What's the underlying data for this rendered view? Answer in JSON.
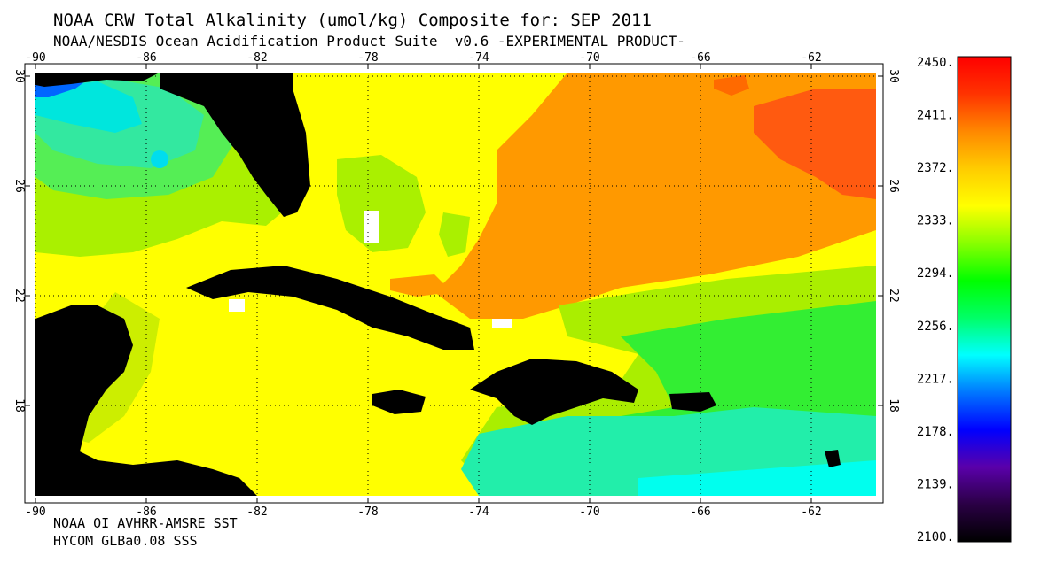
{
  "title_line1": "NOAA CRW Total Alkalinity (umol/kg) Composite for: SEP 2011",
  "title_line2": "NOAA/NESDIS Ocean Acidification Product Suite  v0.6 -EXPERIMENTAL PRODUCT-",
  "source_line1": "NOAA OI AVHRR-AMSRE SST",
  "source_line2": "HYCOM GLBa0.08 SSS",
  "map": {
    "lon_ticks": [
      "-90",
      "-86",
      "-82",
      "-78",
      "-74",
      "-70",
      "-66",
      "-62"
    ],
    "lat_ticks": [
      "30",
      "26",
      "22",
      "18"
    ]
  },
  "colorbar": {
    "labels": [
      "2450.",
      "2411.",
      "2372.",
      "2333.",
      "2294.",
      "2256.",
      "2217.",
      "2178.",
      "2139.",
      "2100."
    ],
    "colors": [
      "#000000",
      "#2a0044",
      "#5a00aa",
      "#0000ff",
      "#0077ff",
      "#00ffff",
      "#00ff66",
      "#00ff00",
      "#88ff00",
      "#ffff00",
      "#ffcc00",
      "#ff8800",
      "#ff3300",
      "#ff0000"
    ]
  },
  "colors": {
    "land": "#000000",
    "high_alkalinity": "#ff9900",
    "mid_alkalinity": "#ffff00",
    "low_alkalinity": "#00ffcc"
  }
}
